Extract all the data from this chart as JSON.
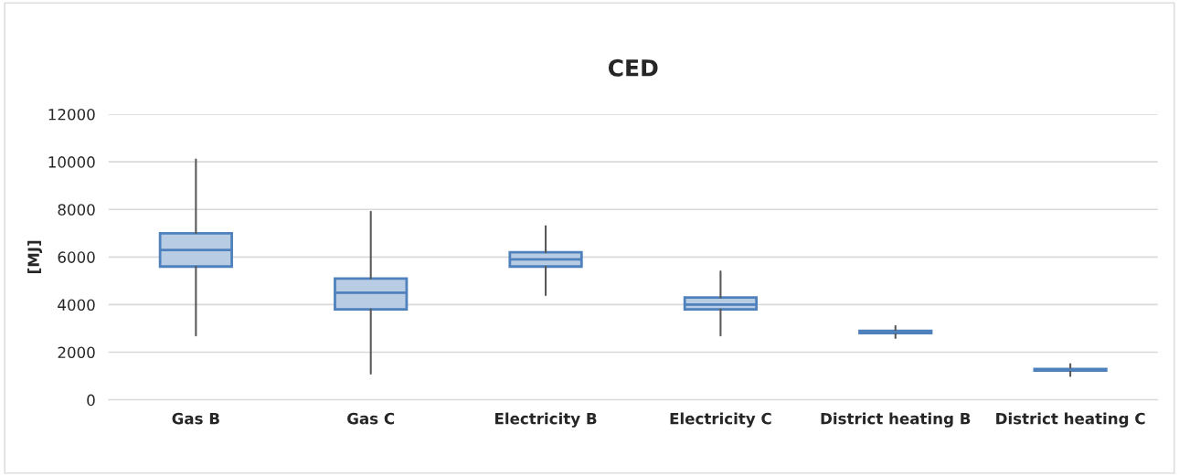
{
  "chart_data": {
    "type": "box",
    "title": "CED",
    "ylabel": "[MJ]",
    "categories": [
      "Gas B",
      "Gas C",
      "Electricity B",
      "Electricity C",
      "District heating B",
      "District heating C"
    ],
    "boxes": [
      {
        "low": 2700,
        "q1": 5600,
        "median": 6300,
        "q3": 7000,
        "high": 10100
      },
      {
        "low": 1100,
        "q1": 3800,
        "median": 4500,
        "q3": 5100,
        "high": 7900
      },
      {
        "low": 4400,
        "q1": 5600,
        "median": 5900,
        "q3": 6200,
        "high": 7300
      },
      {
        "low": 2700,
        "q1": 3800,
        "median": 4000,
        "q3": 4300,
        "high": 5400
      },
      {
        "low": 2600,
        "q1": 2800,
        "median": 2850,
        "q3": 2900,
        "high": 3100
      },
      {
        "low": 1000,
        "q1": 1230,
        "median": 1270,
        "q3": 1300,
        "high": 1500
      }
    ],
    "color": "#b8cce4",
    "ylim": [
      0,
      12000
    ],
    "yticks": [
      0,
      2000,
      4000,
      6000,
      8000,
      10000,
      12000
    ],
    "grid": "y"
  }
}
